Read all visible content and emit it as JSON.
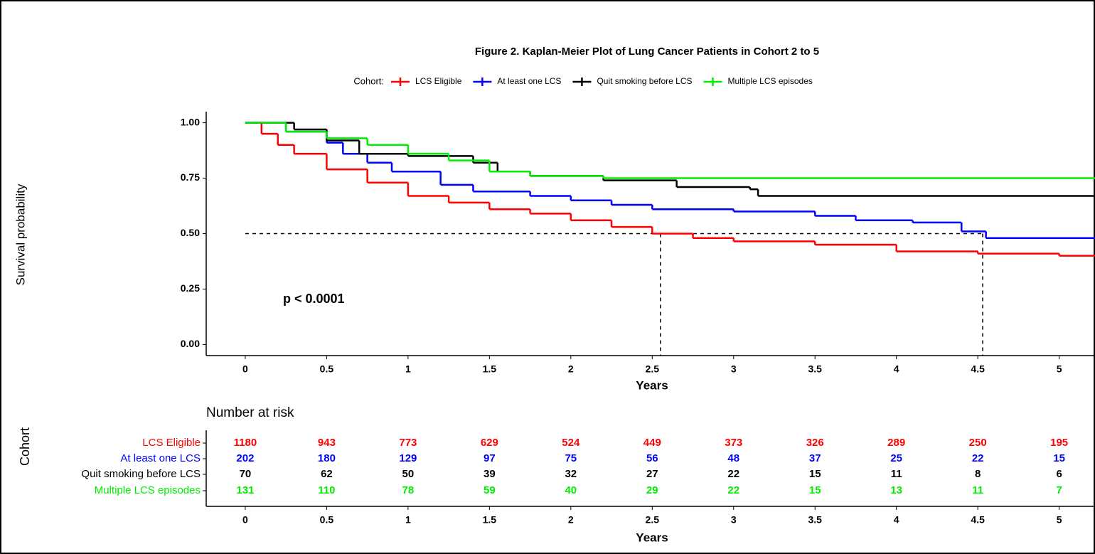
{
  "chart_data": {
    "type": "km",
    "title": "Figure 2. Kaplan-Meier Plot of Lung Cancer Patients in Cohort 2 to 5",
    "legend_title": "Cohort:",
    "x_label": "Years",
    "y_label": "Survival probability",
    "annotation": "p < 0.0001",
    "xlim": [
      -0.24,
      5.22
    ],
    "ylim": [
      -0.05,
      1.05
    ],
    "xticks": [
      0,
      0.5,
      1,
      1.5,
      2,
      2.5,
      3,
      3.5,
      4,
      4.5,
      5
    ],
    "yticks": [
      {
        "value": 0,
        "label": "0.00"
      },
      {
        "value": 0.25,
        "label": "0.25"
      },
      {
        "value": 0.5,
        "label": "0.50"
      },
      {
        "value": 0.75,
        "label": "0.75"
      },
      {
        "value": 1,
        "label": "1.00"
      }
    ],
    "reference_lines": {
      "y": 0.5,
      "x": [
        2.55,
        4.53
      ]
    },
    "series": [
      {
        "name": "LCS Eligible",
        "color": "#ff0000",
        "x": [
          0,
          0.1,
          0.2,
          0.3,
          0.5,
          0.75,
          1,
          1.25,
          1.5,
          1.75,
          2,
          2.25,
          2.5,
          2.75,
          3,
          3.5,
          4,
          4.5,
          5
        ],
        "values": [
          1,
          0.95,
          0.9,
          0.86,
          0.79,
          0.73,
          0.67,
          0.64,
          0.61,
          0.59,
          0.56,
          0.53,
          0.5,
          0.48,
          0.465,
          0.45,
          0.42,
          0.41,
          0.4
        ]
      },
      {
        "name": "At least one LCS",
        "color": "#0000ff",
        "x": [
          0,
          0.25,
          0.5,
          0.6,
          0.75,
          0.9,
          1.2,
          1.4,
          1.75,
          2,
          2.25,
          2.5,
          3,
          3.5,
          3.75,
          4.1,
          4.4,
          4.55
        ],
        "values": [
          1,
          0.96,
          0.91,
          0.86,
          0.82,
          0.78,
          0.72,
          0.69,
          0.67,
          0.65,
          0.63,
          0.61,
          0.6,
          0.58,
          0.56,
          0.55,
          0.51,
          0.48
        ]
      },
      {
        "name": "Quit smoking before LCS",
        "color": "#000000",
        "x": [
          0,
          0.3,
          0.5,
          0.7,
          1,
          1.4,
          1.55,
          1.75,
          2.2,
          2.65,
          3.1,
          3.15
        ],
        "values": [
          1,
          0.97,
          0.92,
          0.86,
          0.85,
          0.82,
          0.78,
          0.76,
          0.74,
          0.71,
          0.7,
          0.67
        ]
      },
      {
        "name": "Multiple LCS episodes",
        "color": "#00ee00",
        "x": [
          0,
          0.25,
          0.5,
          0.75,
          1,
          1.25,
          1.5,
          1.75,
          2.2
        ],
        "values": [
          1,
          0.96,
          0.93,
          0.9,
          0.86,
          0.83,
          0.78,
          0.76,
          0.75
        ]
      }
    ],
    "risk_table": {
      "title": "Number at risk",
      "y_label": "Cohort",
      "x_label": "Years",
      "times": [
        0,
        0.5,
        1,
        1.5,
        2,
        2.5,
        3,
        3.5,
        4,
        4.5,
        5
      ],
      "counts": [
        [
          1180,
          943,
          773,
          629,
          524,
          449,
          373,
          326,
          289,
          250,
          195
        ],
        [
          202,
          180,
          129,
          97,
          75,
          56,
          48,
          37,
          25,
          22,
          15
        ],
        [
          70,
          62,
          50,
          39,
          32,
          27,
          22,
          15,
          11,
          8,
          6
        ],
        [
          131,
          110,
          78,
          59,
          40,
          29,
          22,
          15,
          13,
          11,
          7
        ]
      ]
    }
  }
}
